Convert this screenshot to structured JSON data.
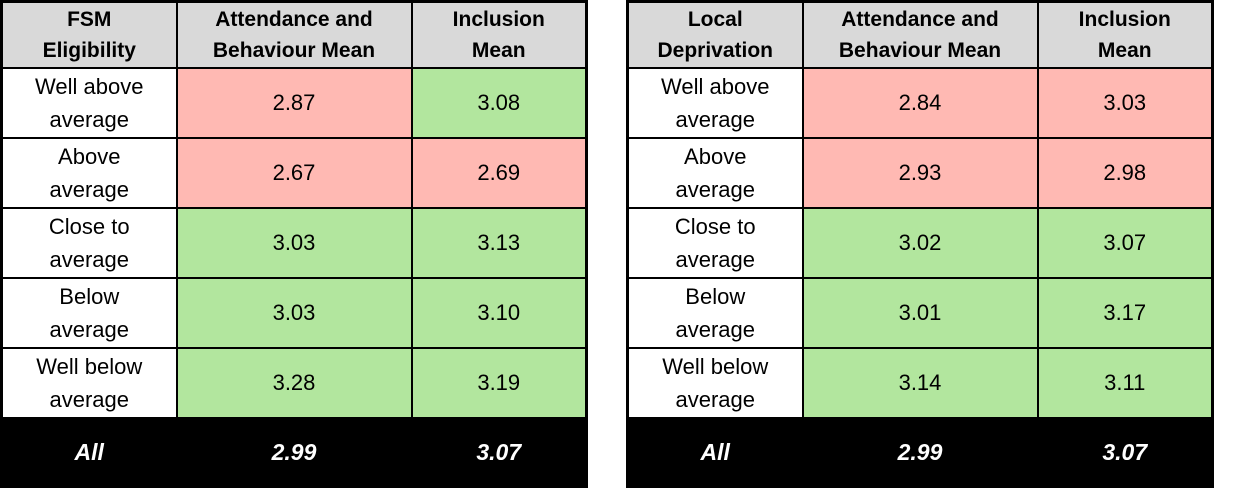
{
  "colors": {
    "red_fill": "#FFB9B3",
    "green_fill": "#B2E69E",
    "header_fill": "#D9D9D9",
    "all_row_fill": "#000000",
    "all_row_text": "#FFFFFF",
    "border": "#000000"
  },
  "tables": [
    {
      "category_header": "FSM\nEligibility",
      "col_headers": [
        "Attendance and\nBehaviour Mean",
        "Inclusion\nMean"
      ],
      "rows": [
        {
          "label": "Well above\naverage",
          "ab": "2.87",
          "ab_fill": "red",
          "inc": "3.08",
          "inc_fill": "green"
        },
        {
          "label": "Above\naverage",
          "ab": "2.67",
          "ab_fill": "red",
          "inc": "2.69",
          "inc_fill": "red"
        },
        {
          "label": "Close to\naverage",
          "ab": "3.03",
          "ab_fill": "green",
          "inc": "3.13",
          "inc_fill": "green"
        },
        {
          "label": "Below\naverage",
          "ab": "3.03",
          "ab_fill": "green",
          "inc": "3.10",
          "inc_fill": "green"
        },
        {
          "label": "Well below\naverage",
          "ab": "3.28",
          "ab_fill": "green",
          "inc": "3.19",
          "inc_fill": "green"
        }
      ],
      "all_row": {
        "label": "All",
        "ab": "2.99",
        "inc": "3.07"
      }
    },
    {
      "category_header": "Local\nDeprivation",
      "col_headers": [
        "Attendance and\nBehaviour Mean",
        "Inclusion\nMean"
      ],
      "rows": [
        {
          "label": "Well above\naverage",
          "ab": "2.84",
          "ab_fill": "red",
          "inc": "3.03",
          "inc_fill": "red"
        },
        {
          "label": "Above\naverage",
          "ab": "2.93",
          "ab_fill": "red",
          "inc": "2.98",
          "inc_fill": "red"
        },
        {
          "label": "Close to\naverage",
          "ab": "3.02",
          "ab_fill": "green",
          "inc": "3.07",
          "inc_fill": "green"
        },
        {
          "label": "Below\naverage",
          "ab": "3.01",
          "ab_fill": "green",
          "inc": "3.17",
          "inc_fill": "green"
        },
        {
          "label": "Well below\naverage",
          "ab": "3.14",
          "ab_fill": "green",
          "inc": "3.11",
          "inc_fill": "green"
        }
      ],
      "all_row": {
        "label": "All",
        "ab": "2.99",
        "inc": "3.07"
      }
    }
  ],
  "chart_data": [
    {
      "type": "table",
      "title": "FSM Eligibility",
      "columns": [
        "FSM Eligibility",
        "Attendance and Behaviour Mean",
        "Inclusion Mean"
      ],
      "rows": [
        [
          "Well above average",
          2.87,
          3.08
        ],
        [
          "Above average",
          2.67,
          2.69
        ],
        [
          "Close to average",
          3.03,
          3.13
        ],
        [
          "Below average",
          3.03,
          3.1
        ],
        [
          "Well below average",
          3.28,
          3.19
        ],
        [
          "All",
          2.99,
          3.07
        ]
      ],
      "cell_highlight": {
        "red": [
          [
            "Well above average",
            "Attendance and Behaviour Mean"
          ],
          [
            "Above average",
            "Attendance and Behaviour Mean"
          ],
          [
            "Above average",
            "Inclusion Mean"
          ]
        ],
        "green": [
          [
            "Well above average",
            "Inclusion Mean"
          ],
          [
            "Close to average",
            "Attendance and Behaviour Mean"
          ],
          [
            "Close to average",
            "Inclusion Mean"
          ],
          [
            "Below average",
            "Attendance and Behaviour Mean"
          ],
          [
            "Below average",
            "Inclusion Mean"
          ],
          [
            "Well below average",
            "Attendance and Behaviour Mean"
          ],
          [
            "Well below average",
            "Inclusion Mean"
          ]
        ]
      }
    },
    {
      "type": "table",
      "title": "Local Deprivation",
      "columns": [
        "Local Deprivation",
        "Attendance and Behaviour Mean",
        "Inclusion Mean"
      ],
      "rows": [
        [
          "Well above average",
          2.84,
          3.03
        ],
        [
          "Above average",
          2.93,
          2.98
        ],
        [
          "Close to average",
          3.02,
          3.07
        ],
        [
          "Below average",
          3.01,
          3.17
        ],
        [
          "Well below average",
          3.14,
          3.11
        ],
        [
          "All",
          2.99,
          3.07
        ]
      ],
      "cell_highlight": {
        "red": [
          [
            "Well above average",
            "Attendance and Behaviour Mean"
          ],
          [
            "Well above average",
            "Inclusion Mean"
          ],
          [
            "Above average",
            "Attendance and Behaviour Mean"
          ],
          [
            "Above average",
            "Inclusion Mean"
          ]
        ],
        "green": [
          [
            "Close to average",
            "Attendance and Behaviour Mean"
          ],
          [
            "Close to average",
            "Inclusion Mean"
          ],
          [
            "Below average",
            "Attendance and Behaviour Mean"
          ],
          [
            "Below average",
            "Inclusion Mean"
          ],
          [
            "Well below average",
            "Attendance and Behaviour Mean"
          ],
          [
            "Well below average",
            "Inclusion Mean"
          ]
        ]
      }
    }
  ]
}
